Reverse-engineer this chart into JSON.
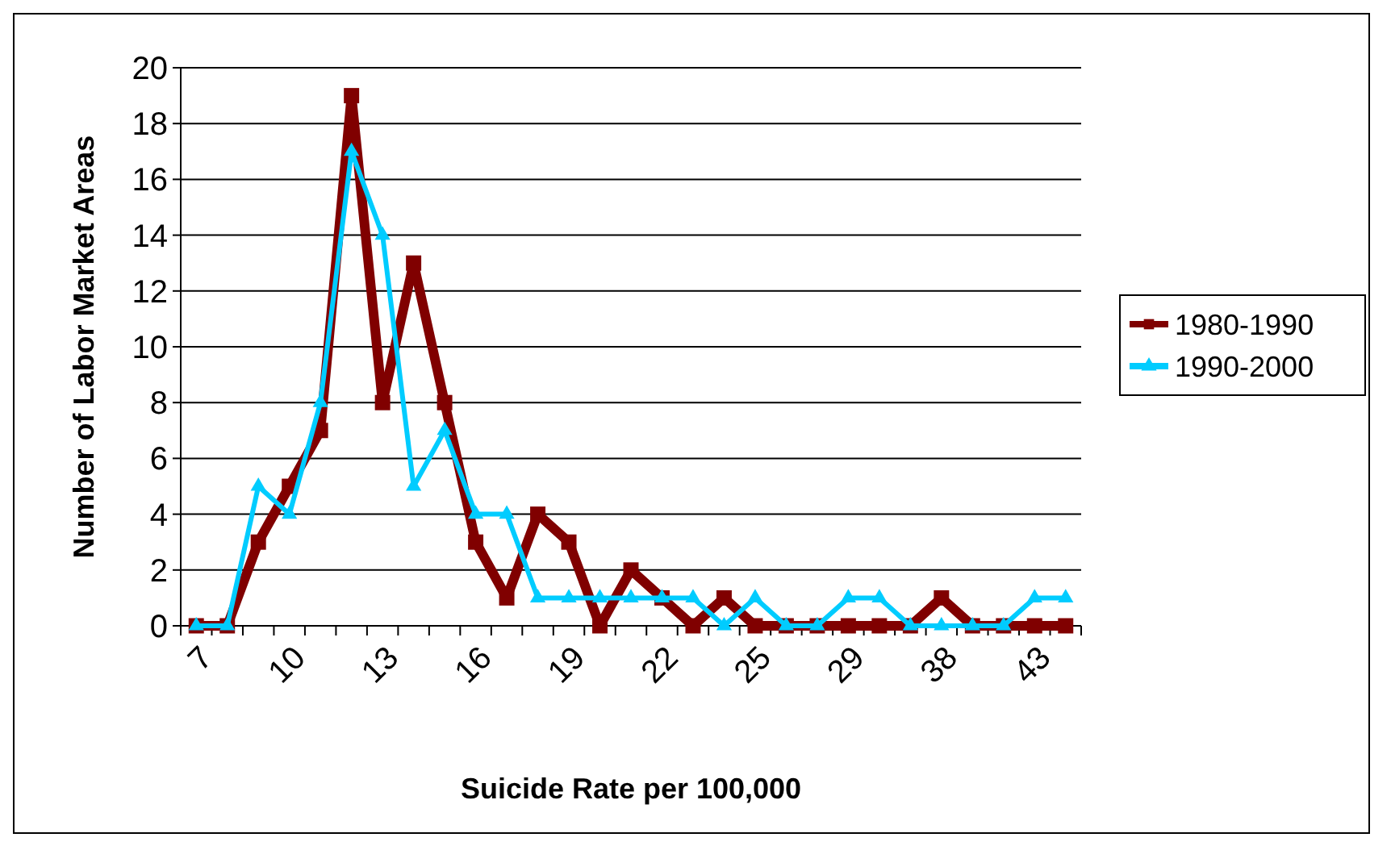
{
  "chart_data": {
    "type": "line",
    "xlabel": "Suicide Rate per 100,000",
    "ylabel": "Number of Labor Market Areas",
    "categories": [
      "7",
      null,
      null,
      "10",
      null,
      null,
      "13",
      null,
      null,
      "16",
      null,
      null,
      "19",
      null,
      null,
      "22",
      null,
      null,
      "25",
      null,
      null,
      "29",
      null,
      null,
      "38",
      null,
      null,
      "43",
      null
    ],
    "series": [
      {
        "name": "1980-1990",
        "color": "#800000",
        "marker": "square",
        "values": [
          0,
          0,
          3,
          5,
          7,
          19,
          8,
          13,
          8,
          3,
          1,
          4,
          3,
          0,
          2,
          1,
          0,
          1,
          0,
          0,
          0,
          0,
          0,
          0,
          1,
          0,
          0,
          0,
          0
        ]
      },
      {
        "name": "1990-2000",
        "color": "#00ccff",
        "marker": "triangle",
        "values": [
          0,
          0,
          5,
          4,
          8,
          17,
          14,
          5,
          7,
          4,
          4,
          1,
          1,
          1,
          1,
          1,
          1,
          0,
          1,
          0,
          0,
          1,
          1,
          0,
          0,
          0,
          0,
          1,
          1
        ]
      }
    ],
    "ylim": [
      0,
      20
    ],
    "yticks": [
      0,
      2,
      4,
      6,
      8,
      10,
      12,
      14,
      16,
      18,
      20
    ],
    "grid": "y",
    "legend": "right",
    "line_style": "solid"
  }
}
